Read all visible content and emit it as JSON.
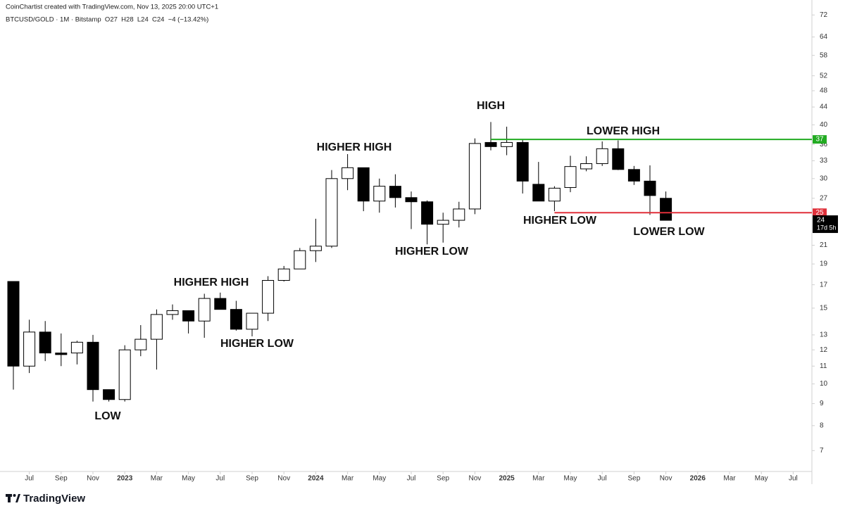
{
  "header": {
    "credit": "CoinChartist created with TradingView.com, Nov 13, 2025 20:00 UTC+1",
    "legend": "BTCUSD/GOLD · 1M · Bitstamp  O27  H28  L24  C24  −4 (−13.42%)",
    "brand": "TradingView"
  },
  "chart_data": {
    "type": "candlestick",
    "x": [
      "2022-06",
      "2022-07",
      "2022-08",
      "2022-09",
      "2022-10",
      "2022-11",
      "2022-12",
      "2023-01",
      "2023-02",
      "2023-03",
      "2023-04",
      "2023-05",
      "2023-06",
      "2023-07",
      "2023-08",
      "2023-09",
      "2023-10",
      "2023-11",
      "2023-12",
      "2024-01",
      "2024-02",
      "2024-03",
      "2024-04",
      "2024-05",
      "2024-06",
      "2024-07",
      "2024-08",
      "2024-09",
      "2024-10",
      "2024-11",
      "2024-12",
      "2025-01",
      "2025-02",
      "2025-03",
      "2025-04",
      "2025-05",
      "2025-06",
      "2025-07",
      "2025-08",
      "2025-09",
      "2025-10",
      "2025-11"
    ],
    "open": [
      17.3,
      11.0,
      13.2,
      11.8,
      11.8,
      12.5,
      9.7,
      9.2,
      12.0,
      12.7,
      14.5,
      14.8,
      14.0,
      15.8,
      14.9,
      13.4,
      14.6,
      17.4,
      18.5,
      20.4,
      20.9,
      30.0,
      31.8,
      26.6,
      28.8,
      27.1,
      26.5,
      23.5,
      24.0,
      25.5,
      36.4,
      35.6,
      36.4,
      29.1,
      26.6,
      28.6,
      31.6,
      32.5,
      35.2,
      31.5,
      29.6,
      27
    ],
    "high": [
      17.3,
      14.1,
      14.0,
      13.1,
      12.6,
      13.0,
      9.7,
      12.3,
      13.7,
      14.9,
      15.3,
      14.8,
      16.2,
      16.3,
      15.6,
      14.6,
      17.8,
      18.8,
      20.7,
      24.2,
      31.4,
      34.2,
      31.8,
      30.0,
      30.7,
      28.0,
      26.7,
      25.0,
      26.5,
      37.2,
      40.6,
      39.6,
      37.0,
      32.8,
      28.8,
      33.9,
      33.8,
      36.6,
      36.8,
      32.1,
      32.2,
      28
    ],
    "low": [
      9.7,
      10.6,
      11.3,
      11.0,
      11.1,
      9.1,
      9.1,
      9.1,
      11.6,
      10.8,
      14.1,
      13.1,
      12.8,
      14.9,
      13.3,
      12.9,
      14.0,
      17.3,
      18.5,
      19.2,
      20.7,
      28.2,
      25.2,
      25.0,
      25.7,
      22.9,
      21.1,
      21.3,
      23.1,
      24.8,
      34.9,
      34.0,
      27.7,
      26.6,
      25.2,
      27.9,
      31.2,
      32.1,
      31.4,
      29.0,
      24.7,
      24
    ],
    "close": [
      11.0,
      13.2,
      11.8,
      11.7,
      12.5,
      9.7,
      9.2,
      12.0,
      12.7,
      14.5,
      14.8,
      14.0,
      15.8,
      14.9,
      13.4,
      14.6,
      17.4,
      18.5,
      20.4,
      20.9,
      30.0,
      31.8,
      26.6,
      28.8,
      27.1,
      26.5,
      23.5,
      24.0,
      25.5,
      36.2,
      35.6,
      36.4,
      29.6,
      26.6,
      28.5,
      32.0,
      32.5,
      35.2,
      31.5,
      29.6,
      27.4,
      24
    ],
    "up_color": "#ffffff",
    "down_color": "#000000",
    "log_scale": true,
    "xlim": [
      "2022-05",
      "2026-08"
    ],
    "xticks": [
      {
        "value": "2022-07",
        "label": "Jul"
      },
      {
        "value": "2022-09",
        "label": "Sep"
      },
      {
        "value": "2022-11",
        "label": "Nov"
      },
      {
        "value": "2023-01",
        "label": "2023"
      },
      {
        "value": "2023-03",
        "label": "Mar"
      },
      {
        "value": "2023-05",
        "label": "May"
      },
      {
        "value": "2023-07",
        "label": "Jul"
      },
      {
        "value": "2023-09",
        "label": "Sep"
      },
      {
        "value": "2023-11",
        "label": "Nov"
      },
      {
        "value": "2024-01",
        "label": "2024"
      },
      {
        "value": "2024-03",
        "label": "Mar"
      },
      {
        "value": "2024-05",
        "label": "May"
      },
      {
        "value": "2024-07",
        "label": "Jul"
      },
      {
        "value": "2024-09",
        "label": "Sep"
      },
      {
        "value": "2024-11",
        "label": "Nov"
      },
      {
        "value": "2025-01",
        "label": "2025"
      },
      {
        "value": "2025-03",
        "label": "Mar"
      },
      {
        "value": "2025-05",
        "label": "May"
      },
      {
        "value": "2025-07",
        "label": "Jul"
      },
      {
        "value": "2025-09",
        "label": "Sep"
      },
      {
        "value": "2025-11",
        "label": "Nov"
      },
      {
        "value": "2026-01",
        "label": "2026"
      },
      {
        "value": "2026-03",
        "label": "Mar"
      },
      {
        "value": "2026-05",
        "label": "May"
      },
      {
        "value": "2026-07",
        "label": "Jul"
      }
    ],
    "ylim": [
      6.26,
      78
    ],
    "yticks": [
      7,
      8,
      9,
      10,
      11,
      12,
      13,
      15,
      17,
      19,
      21,
      27,
      30,
      33,
      36,
      40,
      44,
      48,
      52,
      58,
      64,
      72
    ],
    "hlines": [
      {
        "value": 37,
        "from": "2024-12",
        "color": "#22ab22"
      },
      {
        "value": 25,
        "from": "2025-04",
        "color": "#e0303a"
      }
    ],
    "last_price": {
      "value": 24,
      "countdown": "17d 5h",
      "color": "#000000"
    },
    "annotations": [
      "LOW",
      "HIGHER HIGH",
      "HIGHER LOW",
      "HIGHER HIGH",
      "HIGHER LOW",
      "HIGH",
      "LOWER HIGH",
      "HIGHER LOW",
      "LOWER LOW"
    ]
  }
}
